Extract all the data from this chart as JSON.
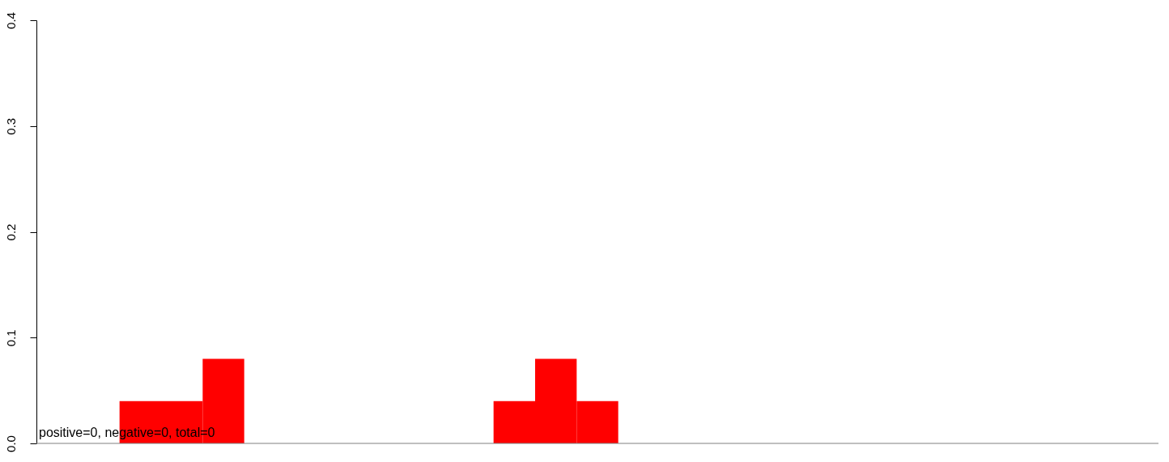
{
  "chart_data": {
    "type": "bar",
    "categories": [
      null,
      null,
      null,
      null,
      null,
      null,
      null,
      null,
      null,
      null,
      null,
      null,
      null,
      null,
      null,
      null,
      null,
      null,
      null,
      null,
      null,
      null,
      null,
      null,
      null,
      null,
      null
    ],
    "values": [
      0,
      0,
      0.04,
      0.04,
      0.08,
      0,
      0,
      0,
      0,
      0,
      0,
      0.04,
      0.08,
      0.04,
      0,
      0,
      0,
      0,
      0,
      0,
      0,
      0,
      0,
      0,
      0,
      0,
      0
    ],
    "color": "#ff0000",
    "ylim": [
      0,
      0.4
    ],
    "yticks": [
      {
        "value": 0,
        "label": "0.0"
      },
      {
        "value": 0.1,
        "label": "0.1"
      },
      {
        "value": 0.2,
        "label": "0.2"
      },
      {
        "value": 0.3,
        "label": "0.3"
      },
      {
        "value": 0.4,
        "label": "0.4"
      }
    ],
    "tick_labels": "y",
    "ref_lines": [
      {
        "axis": "y",
        "value": 0,
        "label": null,
        "color": "#808080"
      }
    ],
    "annotations": [
      "positive=0, negative=0, total=0"
    ]
  }
}
